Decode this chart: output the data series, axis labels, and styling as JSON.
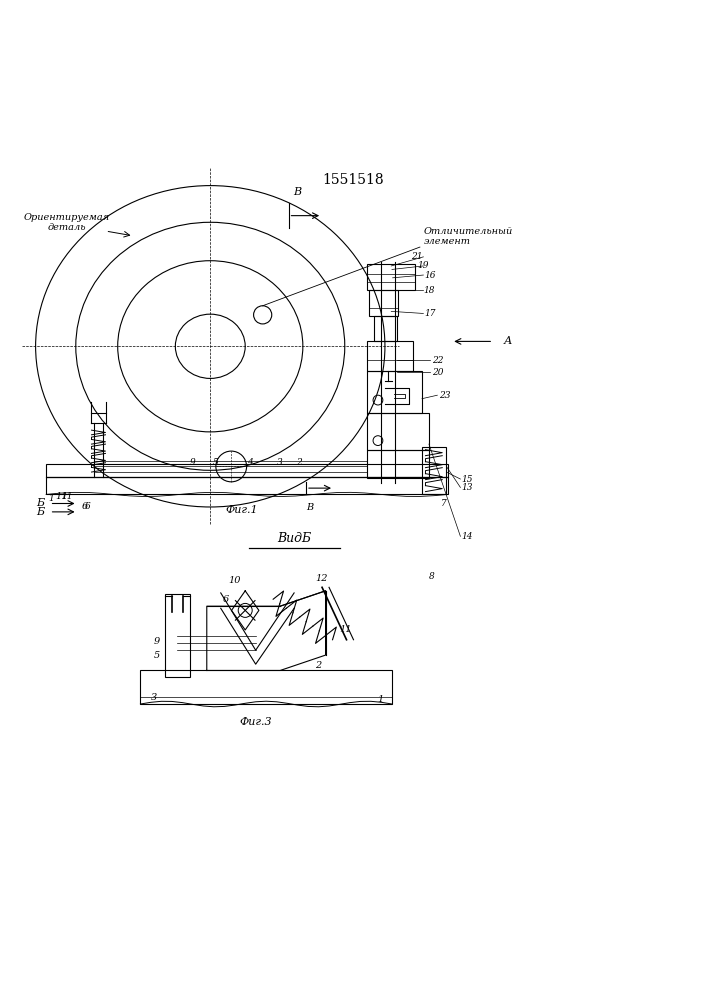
{
  "title": "1551518",
  "bg_color": "#ffffff",
  "line_color": "#000000",
  "fig1_label": "Фиг.1",
  "fig3_label": "Фиг.3",
  "vidb_label": "ВидБ",
  "label_orientir": "Ориентируемая\nдеталь",
  "label_otlichit": "Отличительный\nэлемент"
}
